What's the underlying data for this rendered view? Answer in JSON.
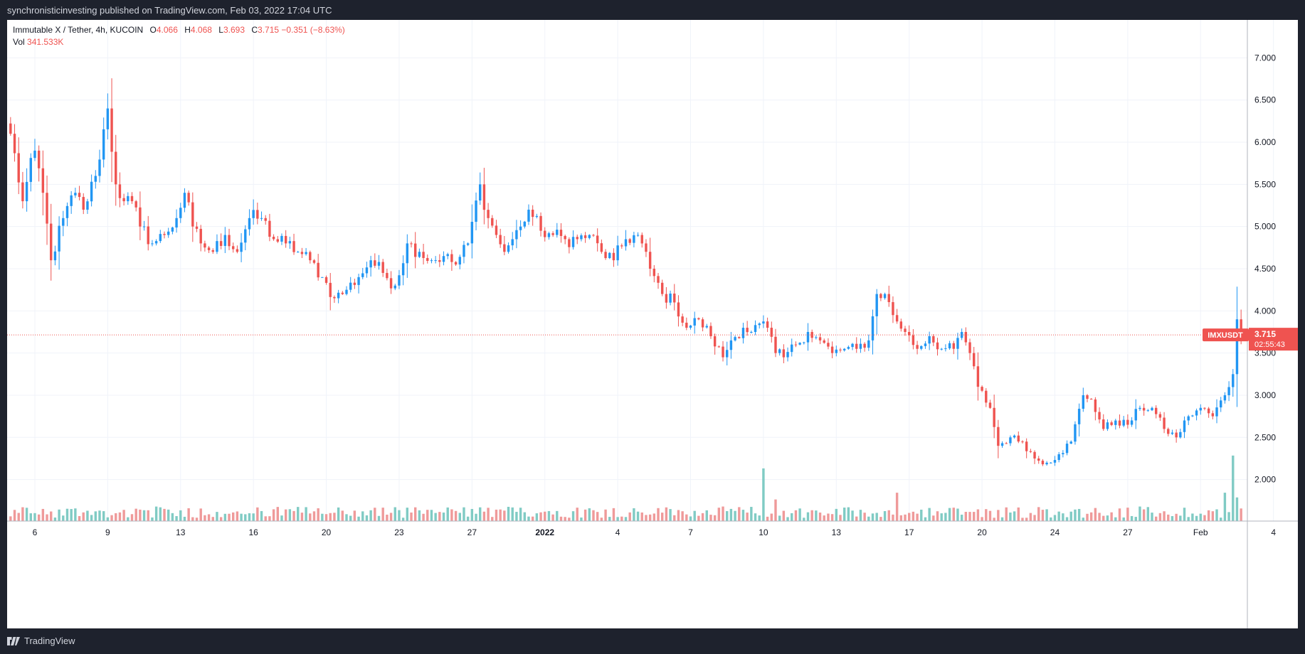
{
  "header": {
    "published": "synchronisticinvesting published on TradingView.com, Feb 03, 2022 17:04 UTC"
  },
  "legend": {
    "title": "Immutable X / Tether, 4h, KUCOIN",
    "o_label": "O",
    "o_value": "4.066",
    "h_label": "H",
    "h_value": "4.068",
    "l_label": "L",
    "l_value": "3.693",
    "c_label": "C",
    "c_value": "3.715",
    "change": "−0.351 (−8.63%)",
    "vol_label": "Vol",
    "vol_value": "341.533K"
  },
  "price_tag": {
    "symbol": "IMXUSDT",
    "price": "3.715",
    "countdown": "02:55:43"
  },
  "footer": {
    "brand": "TradingView"
  },
  "colors": {
    "up": "#2196f3",
    "down": "#ef5350",
    "vol_up": "#80cbc4",
    "vol_down": "#ef9a9a",
    "grid": "#f0f3fa",
    "price_line": "#ef5350"
  },
  "chart_data": {
    "type": "candlestick",
    "symbol": "IMXUSDT",
    "interval": "4h",
    "y_ticks": [
      2.0,
      2.5,
      3.0,
      3.5,
      4.0,
      4.5,
      5.0,
      5.5,
      6.0,
      6.5,
      7.0
    ],
    "y_tick_labels": [
      "2.000",
      "2.500",
      "3.000",
      "3.500",
      "4.000",
      "4.500",
      "5.000",
      "5.500",
      "6.000",
      "6.500",
      "7.000"
    ],
    "ylim": [
      1.55,
      7.45
    ],
    "x_labels": [
      {
        "bar": 6,
        "label": "6"
      },
      {
        "bar": 24,
        "label": "9"
      },
      {
        "bar": 42,
        "label": "13"
      },
      {
        "bar": 60,
        "label": "16"
      },
      {
        "bar": 78,
        "label": "20"
      },
      {
        "bar": 96,
        "label": "23"
      },
      {
        "bar": 114,
        "label": "27"
      },
      {
        "bar": 132,
        "label": "2022"
      },
      {
        "bar": 150,
        "label": "4"
      },
      {
        "bar": 168,
        "label": "7"
      },
      {
        "bar": 186,
        "label": "10"
      },
      {
        "bar": 204,
        "label": "13"
      },
      {
        "bar": 222,
        "label": "17"
      },
      {
        "bar": 240,
        "label": "20"
      },
      {
        "bar": 258,
        "label": "24"
      },
      {
        "bar": 276,
        "label": "27"
      },
      {
        "bar": 294,
        "label": "Feb"
      },
      {
        "bar": 312,
        "label": "4"
      }
    ],
    "anchors": [
      [
        0,
        6.1
      ],
      [
        3,
        5.3
      ],
      [
        6,
        5.9
      ],
      [
        8,
        5.4
      ],
      [
        10,
        4.6
      ],
      [
        13,
        5.1
      ],
      [
        16,
        5.4
      ],
      [
        18,
        5.2
      ],
      [
        21,
        5.6
      ],
      [
        24,
        6.4
      ],
      [
        26,
        5.5
      ],
      [
        28,
        5.3
      ],
      [
        30,
        5.3
      ],
      [
        32,
        5.0
      ],
      [
        35,
        4.8
      ],
      [
        38,
        4.9
      ],
      [
        41,
        5.1
      ],
      [
        43,
        5.4
      ],
      [
        45,
        5.0
      ],
      [
        47,
        4.8
      ],
      [
        50,
        4.7
      ],
      [
        53,
        4.9
      ],
      [
        56,
        4.7
      ],
      [
        59,
        5.1
      ],
      [
        62,
        5.1
      ],
      [
        65,
        4.85
      ],
      [
        68,
        4.8
      ],
      [
        71,
        4.7
      ],
      [
        74,
        4.6
      ],
      [
        77,
        4.4
      ],
      [
        80,
        4.15
      ],
      [
        83,
        4.25
      ],
      [
        86,
        4.4
      ],
      [
        89,
        4.6
      ],
      [
        92,
        4.45
      ],
      [
        95,
        4.3
      ],
      [
        98,
        4.8
      ],
      [
        101,
        4.7
      ],
      [
        104,
        4.6
      ],
      [
        107,
        4.65
      ],
      [
        110,
        4.55
      ],
      [
        113,
        4.8
      ],
      [
        116,
        5.5
      ],
      [
        118,
        5.1
      ],
      [
        120,
        4.9
      ],
      [
        122,
        4.7
      ],
      [
        124,
        4.85
      ],
      [
        126,
        5.0
      ],
      [
        128,
        5.2
      ],
      [
        131,
        4.95
      ],
      [
        134,
        4.9
      ],
      [
        137,
        4.85
      ],
      [
        140,
        4.85
      ],
      [
        143,
        4.9
      ],
      [
        146,
        4.7
      ],
      [
        149,
        4.6
      ],
      [
        152,
        4.85
      ],
      [
        155,
        4.9
      ],
      [
        158,
        4.5
      ],
      [
        161,
        4.2
      ],
      [
        164,
        4.1
      ],
      [
        167,
        3.8
      ],
      [
        170,
        3.9
      ],
      [
        173,
        3.7
      ],
      [
        176,
        3.45
      ],
      [
        178,
        3.65
      ],
      [
        181,
        3.8
      ],
      [
        183,
        3.75
      ],
      [
        185,
        3.85
      ],
      [
        187,
        3.8
      ],
      [
        189,
        3.5
      ],
      [
        191,
        3.45
      ],
      [
        194,
        3.6
      ],
      [
        197,
        3.75
      ],
      [
        200,
        3.65
      ],
      [
        203,
        3.5
      ],
      [
        206,
        3.55
      ],
      [
        209,
        3.55
      ],
      [
        212,
        3.65
      ],
      [
        214,
        4.2
      ],
      [
        216,
        4.2
      ],
      [
        218,
        3.95
      ],
      [
        221,
        3.75
      ],
      [
        224,
        3.55
      ],
      [
        227,
        3.7
      ],
      [
        230,
        3.55
      ],
      [
        233,
        3.55
      ],
      [
        235,
        3.75
      ],
      [
        237,
        3.5
      ],
      [
        239,
        3.1
      ],
      [
        242,
        2.85
      ],
      [
        244,
        2.4
      ],
      [
        247,
        2.5
      ],
      [
        250,
        2.45
      ],
      [
        253,
        2.25
      ],
      [
        256,
        2.2
      ],
      [
        259,
        2.3
      ],
      [
        262,
        2.45
      ],
      [
        265,
        3.0
      ],
      [
        267,
        2.95
      ],
      [
        270,
        2.6
      ],
      [
        273,
        2.7
      ],
      [
        276,
        2.65
      ],
      [
        279,
        2.85
      ],
      [
        282,
        2.85
      ],
      [
        285,
        2.6
      ],
      [
        288,
        2.5
      ],
      [
        291,
        2.75
      ],
      [
        294,
        2.85
      ],
      [
        297,
        2.75
      ],
      [
        300,
        3.0
      ],
      [
        302,
        3.25
      ],
      [
        303,
        3.9
      ],
      [
        304,
        3.715
      ]
    ],
    "volume": {
      "base": 0.12,
      "spikes": [
        [
          186,
          0.78
        ],
        [
          189,
          0.32
        ],
        [
          219,
          0.42
        ],
        [
          300,
          0.42
        ],
        [
          302,
          0.97
        ],
        [
          303,
          0.35
        ]
      ]
    }
  }
}
